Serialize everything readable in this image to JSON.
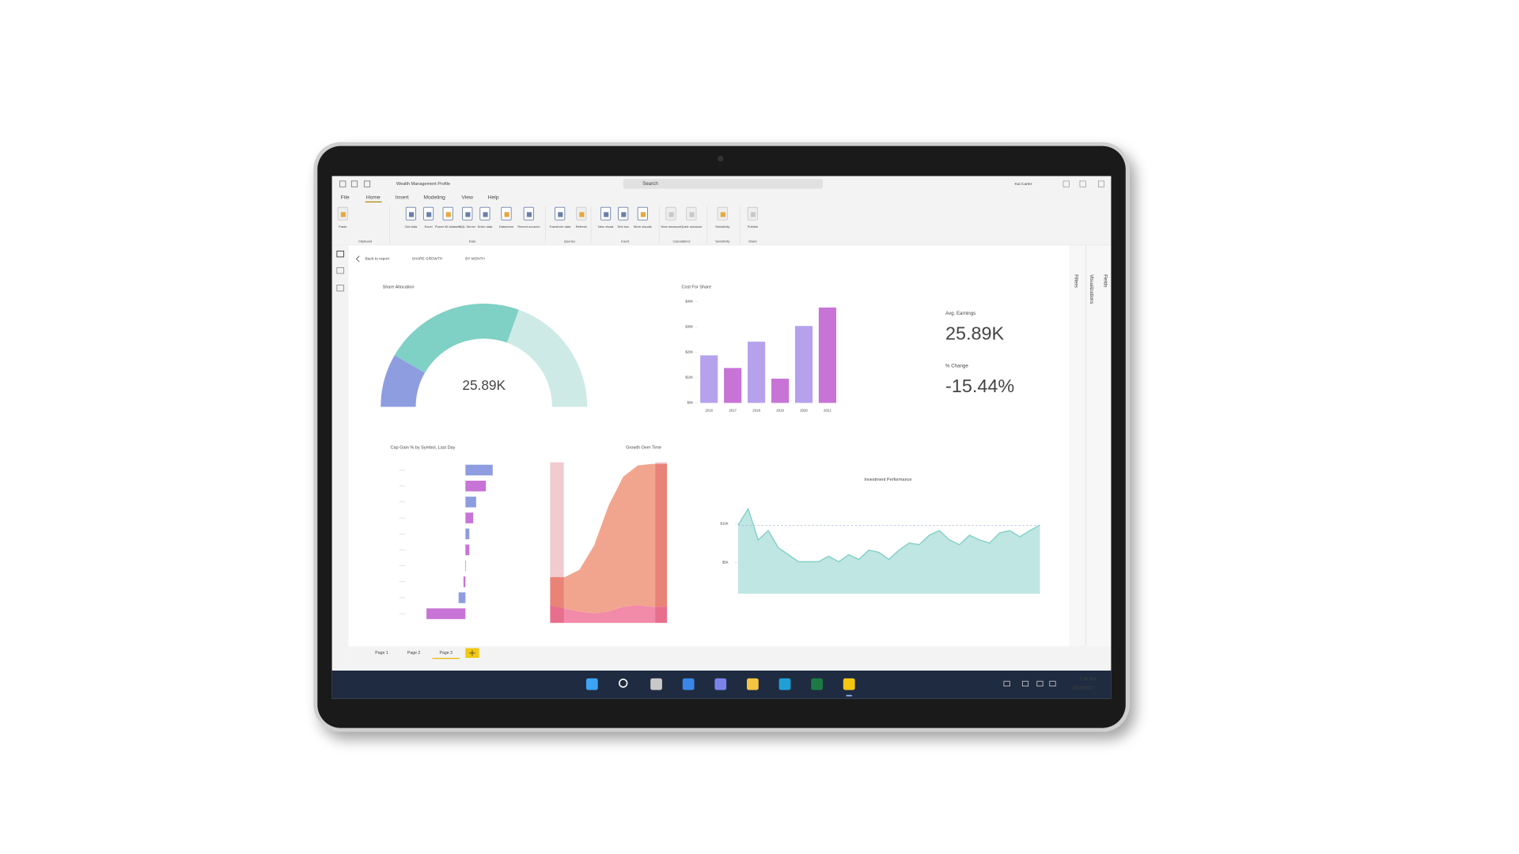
{
  "window": {
    "title": "Wealth Management Profile",
    "search": "Search",
    "user": "Kai Carter"
  },
  "menu": [
    "File",
    "Home",
    "Insert",
    "Modeling",
    "View",
    "Help"
  ],
  "ribbon": {
    "buttons": [
      "Paste",
      "Get data",
      "Excel",
      "Power BI datasets",
      "SQL Server",
      "Enter data",
      "Dataverse",
      "Recent sources",
      "Transform data",
      "Refresh",
      "New visual",
      "Text box",
      "More visuals",
      "New measure",
      "Quick measure",
      "Sensitivity",
      "Publish"
    ],
    "groups": [
      "Clipboard",
      "Data",
      "Queries",
      "Insert",
      "Calculations",
      "Sensitivity",
      "Share"
    ]
  },
  "report_nav": {
    "back": "Back to report",
    "tabs": [
      "SHARE GROWTH",
      "BY MONTH"
    ]
  },
  "panes": [
    "Filters",
    "Visualizations",
    "Fields"
  ],
  "visuals": {
    "gauge": {
      "type": "gauge",
      "title": "Share Allocation",
      "value_label": "25.89K",
      "segments": [
        5,
        13.3,
        11.7
      ],
      "colors": [
        "#8e9de0",
        "#7fd0c5",
        "#cdeae6"
      ]
    },
    "cost": {
      "type": "bar",
      "title": "Cost For Share",
      "categories": [
        "2016",
        "2017",
        "2018",
        "2019",
        "2020",
        "2021"
      ],
      "values": [
        18.8,
        13.8,
        24.2,
        9.6,
        30.4,
        37.7
      ],
      "colors": [
        "#b6a1ec",
        "#c774d6"
      ],
      "ylim": [
        0,
        40
      ],
      "yticks": [
        {
          "value": 0,
          "label": "$0K"
        },
        {
          "value": 10,
          "label": "$10K"
        },
        {
          "value": 20,
          "label": "$20K"
        },
        {
          "value": 30,
          "label": "$30K"
        },
        {
          "value": 40,
          "label": "$40K"
        }
      ]
    },
    "kpi": [
      {
        "label": "Avg. Earnings",
        "value": "25.89K",
        "color": "#4dbdb1"
      },
      {
        "label": "% Change",
        "value": "-15.44%",
        "color": "#7d8fe2"
      }
    ],
    "cap_gain": {
      "type": "bar",
      "title": "Cap Gain % by Symbol, Last Day",
      "values": [
        0.56,
        0.42,
        0.22,
        0.16,
        0.08,
        0.08,
        0,
        -0.04,
        -0.14,
        -0.8
      ],
      "colors": [
        "#8e9de0",
        "#c774d6"
      ],
      "xlim": [
        -0.9,
        0.6
      ]
    },
    "growth": {
      "type": "area",
      "title": "Growth Over Time",
      "series": [
        {
          "color": "#f28aa9",
          "values": [
            11,
            9,
            7,
            6,
            7,
            10,
            11,
            10,
            10
          ]
        },
        {
          "color": "#f2a58e",
          "values": [
            17.5,
            19.5,
            26,
            42,
            66,
            81,
            87,
            89,
            89
          ]
        }
      ],
      "ylim": [
        0,
        100
      ]
    },
    "investment": {
      "type": "area",
      "title": "Investment Performance",
      "values": [
        9.8,
        11.9,
        7.9,
        9.1,
        6.9,
        6,
        5.1,
        5.1,
        5.1,
        5.8,
        5.1,
        6,
        5.4,
        6.6,
        6.3,
        5.4,
        6.6,
        7.5,
        7.3,
        8.5,
        9.1,
        7.9,
        7.3,
        8.5,
        7.9,
        7.5,
        8.8,
        9.1,
        8.3,
        9.1,
        9.8
      ],
      "color": "#bfe6e2",
      "line_color": "#86d1c8",
      "ylim": [
        0,
        15
      ],
      "yticks": [
        {
          "value": 5,
          "label": "$5K"
        },
        {
          "value": 10,
          "label": "$10K"
        }
      ]
    }
  },
  "pages": [
    "Page 1",
    "Page 2",
    "Page 3"
  ],
  "taskbar": {
    "time": "2:30 PM",
    "date": "10/20/2021"
  }
}
